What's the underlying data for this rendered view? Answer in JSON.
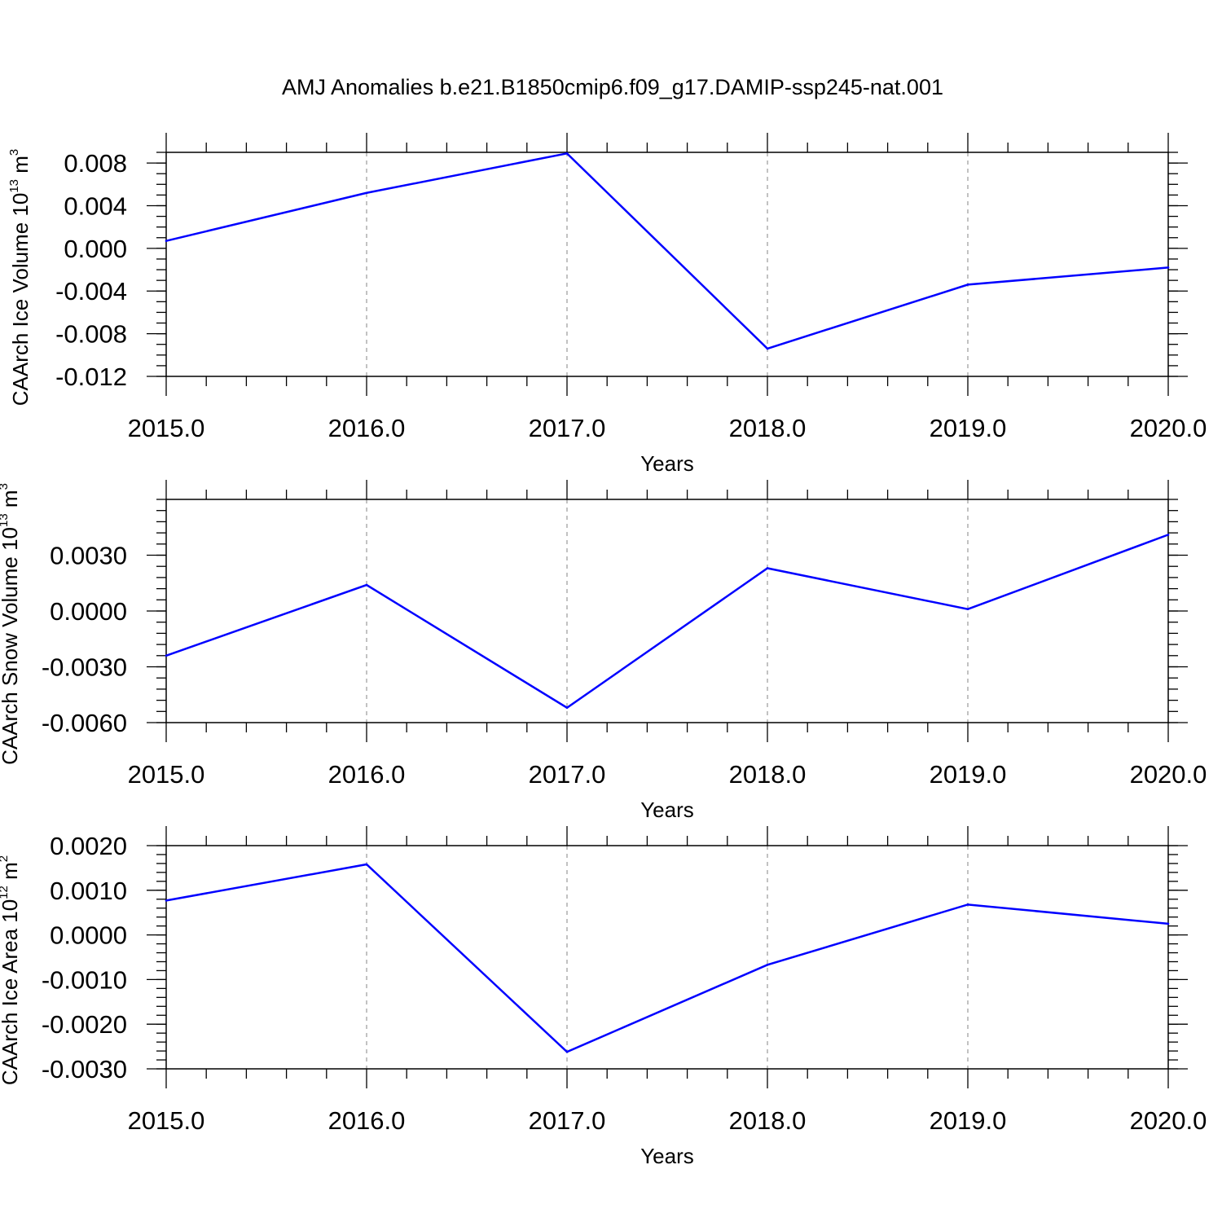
{
  "figure": {
    "title": "AMJ Anomalies b.e21.B1850cmip6.f09_g17.DAMIP-ssp245-nat.001"
  },
  "colors": {
    "line": "#0000ff",
    "grid": "#9a9a9a",
    "axes": "#000000"
  },
  "chart_data": [
    {
      "type": "line",
      "xlabel": "Years",
      "ylabel": {
        "text": "CAArch Ice Volume 10",
        "exponent": "13",
        "unit": " m",
        "unit_exponent": "3"
      },
      "x": [
        2015,
        2016,
        2017,
        2018,
        2019,
        2020
      ],
      "xlim": [
        2015,
        2020
      ],
      "x_ticks": [
        "2015.0",
        "2016.0",
        "2017.0",
        "2018.0",
        "2019.0",
        "2020.0"
      ],
      "ylim": [
        -0.012,
        0.009
      ],
      "y_ticks": [
        -0.012,
        -0.008,
        -0.004,
        0.0,
        0.004,
        0.008
      ],
      "y_tick_labels": [
        "-0.012",
        "-0.008",
        "-0.004",
        "0.000",
        "0.004",
        "0.008"
      ],
      "y_minor_step": 0.001,
      "series": [
        {
          "values": [
            0.0007,
            0.0052,
            0.0089,
            -0.0094,
            -0.0034,
            -0.0018
          ]
        }
      ],
      "grid": "vertical dashed at major x ticks"
    },
    {
      "type": "line",
      "xlabel": "Years",
      "ylabel": {
        "text": "CAArch Snow Volume 10",
        "exponent": "13",
        "unit": " m",
        "unit_exponent": "3"
      },
      "x": [
        2015,
        2016,
        2017,
        2018,
        2019,
        2020
      ],
      "xlim": [
        2015,
        2020
      ],
      "x_ticks": [
        "2015.0",
        "2016.0",
        "2017.0",
        "2018.0",
        "2019.0",
        "2020.0"
      ],
      "ylim": [
        -0.006,
        0.006
      ],
      "y_ticks": [
        -0.006,
        -0.003,
        0.0,
        0.003
      ],
      "y_tick_labels": [
        "-0.0060",
        "-0.0030",
        "0.0000",
        "0.0030"
      ],
      "y_minor_step": 0.0006,
      "series": [
        {
          "values": [
            -0.0024,
            0.0014,
            -0.0052,
            0.0023,
            0.0001,
            0.0041
          ]
        }
      ],
      "grid": "vertical dashed at major x ticks"
    },
    {
      "type": "line",
      "xlabel": "Years",
      "ylabel": {
        "text": "CAArch Ice Area 10",
        "exponent": "12",
        "unit": " m",
        "unit_exponent": "2"
      },
      "x": [
        2015,
        2016,
        2017,
        2018,
        2019,
        2020
      ],
      "xlim": [
        2015,
        2020
      ],
      "x_ticks": [
        "2015.0",
        "2016.0",
        "2017.0",
        "2018.0",
        "2019.0",
        "2020.0"
      ],
      "ylim": [
        -0.003,
        0.002
      ],
      "y_ticks": [
        -0.003,
        -0.002,
        -0.001,
        0.0,
        0.001,
        0.002
      ],
      "y_tick_labels": [
        "-0.0030",
        "-0.0020",
        "-0.0010",
        "0.0000",
        "0.0010",
        "0.0020"
      ],
      "y_minor_step": 0.0002,
      "series": [
        {
          "values": [
            0.00077,
            0.00158,
            -0.00262,
            -0.00067,
            0.00068,
            0.00025
          ]
        }
      ],
      "grid": "vertical dashed at major x ticks"
    }
  ]
}
